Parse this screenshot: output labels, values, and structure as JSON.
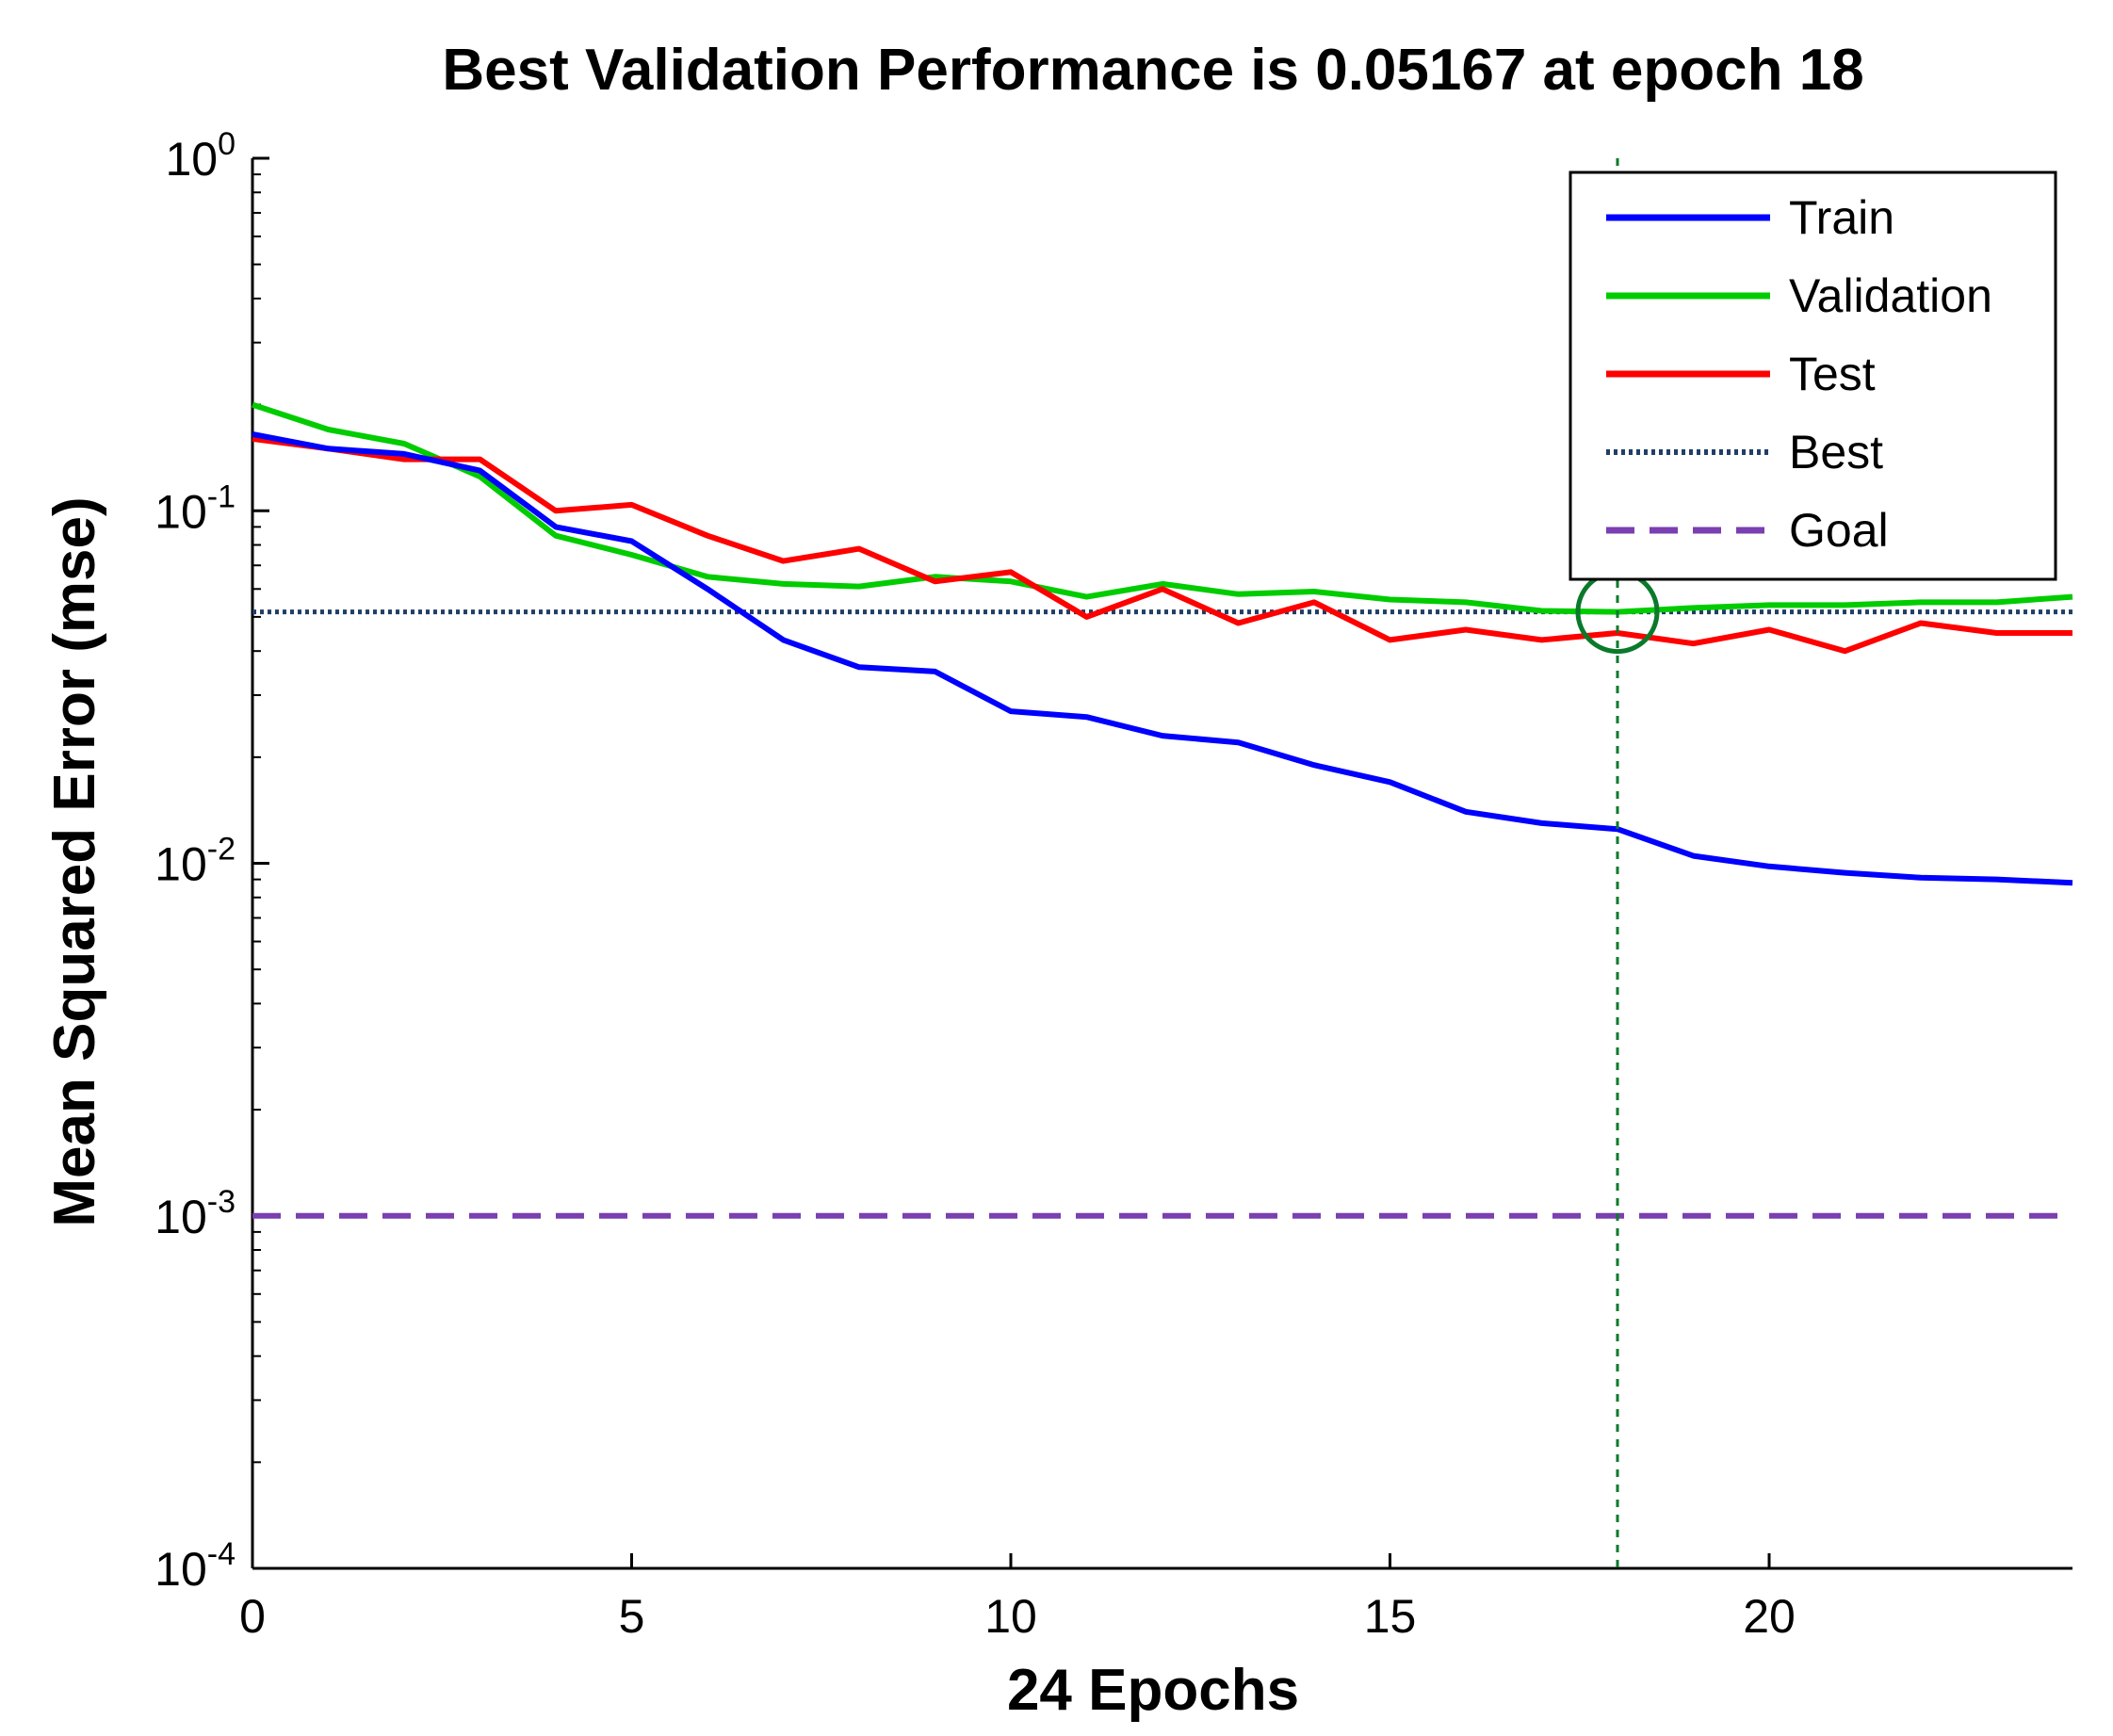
{
  "chart_data": {
    "type": "line",
    "title": "Best Validation Performance is 0.05167 at epoch 18",
    "xlabel": "24 Epochs",
    "ylabel": "Mean Squared Error  (mse)",
    "xlim": [
      0,
      24
    ],
    "ylim": [
      0.0001,
      1
    ],
    "yscale": "log",
    "grid": false,
    "legend_position": "top-right",
    "x_ticks": [
      0,
      5,
      10,
      15,
      20
    ],
    "x_tick_labels": [
      "0",
      "5",
      "10",
      "15",
      "20"
    ],
    "y_ticks": [
      0.0001,
      0.001,
      0.01,
      0.1,
      1
    ],
    "y_tick_bases": [
      "10",
      "10",
      "10",
      "10",
      "10"
    ],
    "y_tick_exponents": [
      "-4",
      "-3",
      "-2",
      "-1",
      "0"
    ],
    "x": [
      0,
      1,
      2,
      3,
      4,
      5,
      6,
      7,
      8,
      9,
      10,
      11,
      12,
      13,
      14,
      15,
      16,
      17,
      18,
      19,
      20,
      21,
      22,
      23,
      24
    ],
    "series": [
      {
        "name": "Train",
        "color": "#0000ff",
        "style": "solid",
        "values": [
          0.165,
          0.15,
          0.145,
          0.13,
          0.09,
          0.082,
          0.06,
          0.043,
          0.036,
          0.035,
          0.027,
          0.026,
          0.023,
          0.022,
          0.019,
          0.017,
          0.014,
          0.013,
          0.0125,
          0.0105,
          0.0098,
          0.0094,
          0.0091,
          0.009,
          0.0088
        ]
      },
      {
        "name": "Validation",
        "color": "#00cc00",
        "style": "solid",
        "values": [
          0.2,
          0.17,
          0.155,
          0.125,
          0.085,
          0.075,
          0.065,
          0.062,
          0.061,
          0.065,
          0.063,
          0.057,
          0.062,
          0.058,
          0.059,
          0.056,
          0.055,
          0.052,
          0.05167,
          0.053,
          0.054,
          0.054,
          0.055,
          0.055,
          0.057
        ]
      },
      {
        "name": "Test",
        "color": "#ff0000",
        "style": "solid",
        "values": [
          0.16,
          0.15,
          0.14,
          0.14,
          0.1,
          0.104,
          0.085,
          0.072,
          0.078,
          0.063,
          0.067,
          0.05,
          0.06,
          0.048,
          0.055,
          0.043,
          0.046,
          0.043,
          0.045,
          0.042,
          0.046,
          0.04,
          0.048,
          0.045,
          0.045
        ]
      },
      {
        "name": "Best",
        "color": "#1f3f66",
        "style": "dotted",
        "values": [
          0.05167,
          0.05167,
          0.05167,
          0.05167,
          0.05167,
          0.05167,
          0.05167,
          0.05167,
          0.05167,
          0.05167,
          0.05167,
          0.05167,
          0.05167,
          0.05167,
          0.05167,
          0.05167,
          0.05167,
          0.05167,
          0.05167,
          0.05167,
          0.05167,
          0.05167,
          0.05167,
          0.05167,
          0.05167
        ]
      },
      {
        "name": "Goal",
        "color": "#7a3fb0",
        "style": "dashed",
        "values": [
          0.001,
          0.001,
          0.001,
          0.001,
          0.001,
          0.001,
          0.001,
          0.001,
          0.001,
          0.001,
          0.001,
          0.001,
          0.001,
          0.001,
          0.001,
          0.001,
          0.001,
          0.001,
          0.001,
          0.001,
          0.001,
          0.001,
          0.001,
          0.001,
          0.001
        ]
      }
    ],
    "best_marker": {
      "epoch": 18,
      "value": 0.05167,
      "color": "#0a7a2a"
    }
  }
}
